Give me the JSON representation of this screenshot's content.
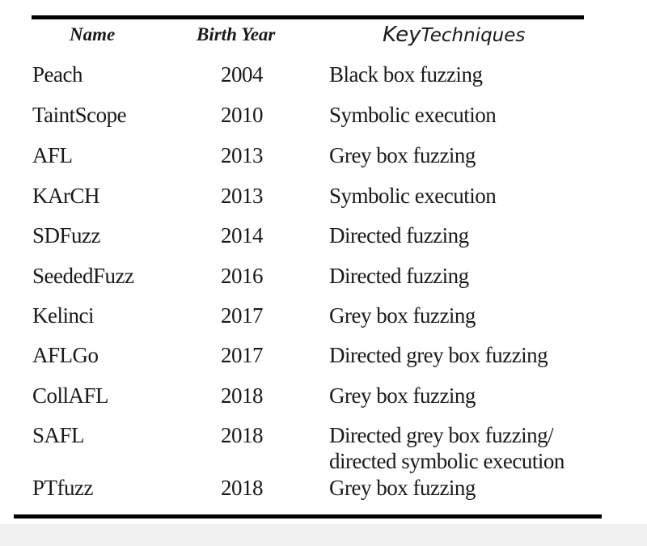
{
  "table": {
    "headers": {
      "name": "Name",
      "birth_year": "Birth Year",
      "key_techniques_key": "Key",
      "key_techniques_rest": "Techniques"
    },
    "rows": [
      {
        "name": "Peach",
        "year": "2004",
        "technique": [
          "Black box fuzzing"
        ]
      },
      {
        "name": "TaintScope",
        "year": "2010",
        "technique": [
          "Symbolic execution"
        ]
      },
      {
        "name": "AFL",
        "year": "2013",
        "technique": [
          "Grey box fuzzing"
        ]
      },
      {
        "name": "KArCH",
        "year": "2013",
        "technique": [
          "Symbolic execution"
        ]
      },
      {
        "name": "SDFuzz",
        "year": "2014",
        "technique": [
          "Directed fuzzing"
        ]
      },
      {
        "name": "SeededFuzz",
        "year": "2016",
        "technique": [
          "Directed fuzzing"
        ]
      },
      {
        "name": "Kelinci",
        "year": "2017",
        "technique": [
          "Grey box fuzzing"
        ]
      },
      {
        "name": "AFLGo",
        "year": "2017",
        "technique": [
          "Directed grey box fuzzing"
        ]
      },
      {
        "name": "CollAFL",
        "year": "2018",
        "technique": [
          "Grey box fuzzing"
        ]
      },
      {
        "name": "SAFL",
        "year": "2018",
        "technique": [
          "Directed grey box fuzzing/",
          "directed symbolic execution"
        ]
      },
      {
        "name": "PTfuzz",
        "year": "2018",
        "technique": [
          "Grey box fuzzing"
        ]
      }
    ]
  }
}
